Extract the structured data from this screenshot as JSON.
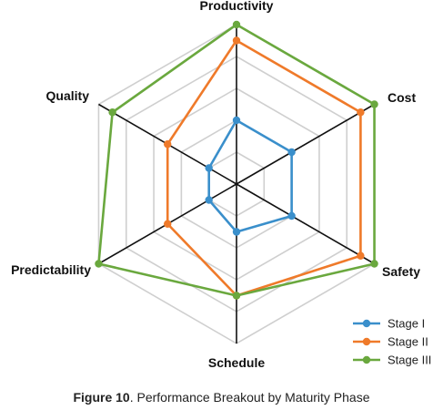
{
  "chart_data": {
    "type": "radar",
    "axes": [
      "Productivity",
      "Cost",
      "Safety",
      "Schedule",
      "Predictability",
      "Quality"
    ],
    "rmax": 5,
    "rings": 5,
    "series": [
      {
        "name": "Stage I",
        "color": "#3a8fcb",
        "values": [
          2.0,
          2.0,
          2.0,
          1.5,
          1.0,
          1.0
        ]
      },
      {
        "name": "Stage II",
        "color": "#ef7a2a",
        "values": [
          4.5,
          4.5,
          4.5,
          3.5,
          2.5,
          2.5
        ]
      },
      {
        "name": "Stage III",
        "color": "#6aa83e",
        "values": [
          5.0,
          5.0,
          5.0,
          3.5,
          5.0,
          4.5
        ]
      }
    ],
    "legend_position": "bottom-right",
    "grid": true
  },
  "caption": {
    "label": "Figure 10",
    "text": ". Performance Breakout by Maturity Phase"
  }
}
